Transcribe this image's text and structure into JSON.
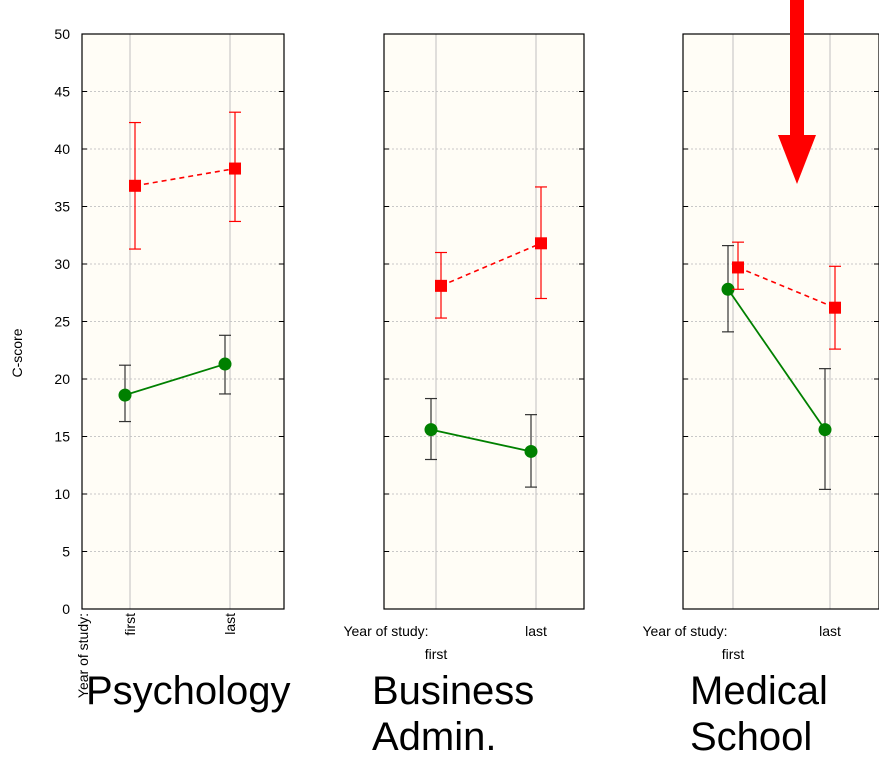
{
  "chart_data": {
    "type": "line",
    "ylabel": "C-score",
    "ylim": [
      0,
      50
    ],
    "yticks": [
      0,
      5,
      10,
      15,
      20,
      25,
      30,
      35,
      40,
      45,
      50
    ],
    "grid": true,
    "x_axis_title": "Year of study:",
    "x_categories": [
      "first",
      "last"
    ],
    "colors": {
      "red_series": "#ff0000",
      "green_series": "#008000",
      "green_errorbar": "#333333",
      "arrow": "#ff0000",
      "panel_background": "#fffdf6"
    },
    "panels": [
      {
        "name_lines": [
          "Psychology"
        ],
        "series": [
          {
            "color": "red",
            "marker": "square",
            "line_style": "dashed",
            "values": [
              36.8,
              38.3
            ],
            "lower": [
              31.3,
              33.7
            ],
            "upper": [
              42.3,
              43.2
            ]
          },
          {
            "color": "green",
            "marker": "circle",
            "line_style": "solid",
            "values": [
              18.6,
              21.3
            ],
            "lower": [
              16.3,
              18.7
            ],
            "upper": [
              21.2,
              23.8
            ]
          }
        ]
      },
      {
        "name_lines": [
          "Business",
          "Admin."
        ],
        "series": [
          {
            "color": "red",
            "marker": "square",
            "line_style": "dashed",
            "values": [
              28.1,
              31.8
            ],
            "lower": [
              25.3,
              27.0
            ],
            "upper": [
              31.0,
              36.7
            ]
          },
          {
            "color": "green",
            "marker": "circle",
            "line_style": "solid",
            "values": [
              15.6,
              13.7
            ],
            "lower": [
              13.0,
              10.6
            ],
            "upper": [
              18.3,
              16.9
            ]
          }
        ]
      },
      {
        "name_lines": [
          "Medical",
          "School"
        ],
        "series": [
          {
            "color": "red",
            "marker": "square",
            "line_style": "dashed",
            "values": [
              29.7,
              26.2
            ],
            "lower": [
              27.8,
              22.6
            ],
            "upper": [
              31.9,
              29.8
            ]
          },
          {
            "color": "green",
            "marker": "circle",
            "line_style": "solid",
            "values": [
              27.8,
              15.6
            ],
            "lower": [
              24.1,
              10.4
            ],
            "upper": [
              31.6,
              20.9
            ]
          }
        ]
      }
    ],
    "annotations": [
      {
        "type": "arrow",
        "direction": "down",
        "color": "red",
        "panel": "Medical School"
      }
    ]
  }
}
